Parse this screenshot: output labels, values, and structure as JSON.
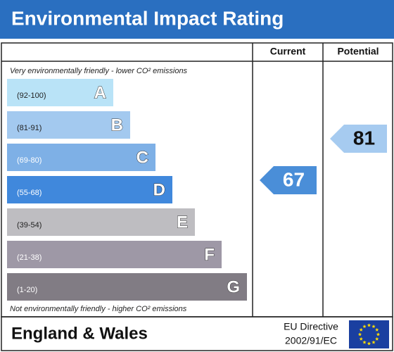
{
  "chart_data": {
    "type": "rating",
    "title": "Environmental Impact Rating",
    "top_note": "Very environmentally friendly - lower CO² emissions",
    "bottom_note": "Not environmentally friendly - higher CO² emissions",
    "bands": [
      {
        "range": "(92-100)",
        "letter": "A",
        "color": "#b9e3f7",
        "text_color": "#222"
      },
      {
        "range": "(81-91)",
        "letter": "B",
        "color": "#a3c9ef",
        "text_color": "#222"
      },
      {
        "range": "(69-80)",
        "letter": "C",
        "color": "#7eb0e6",
        "text_color": "#fff"
      },
      {
        "range": "(55-68)",
        "letter": "D",
        "color": "#4088dc",
        "text_color": "#fff"
      },
      {
        "range": "(39-54)",
        "letter": "E",
        "color": "#bebdc1",
        "text_color": "#222"
      },
      {
        "range": "(21-38)",
        "letter": "F",
        "color": "#9e98a6",
        "text_color": "#fff"
      },
      {
        "range": "(1-20)",
        "letter": "G",
        "color": "#817c84",
        "text_color": "#fff"
      }
    ],
    "series": [
      {
        "name": "Current",
        "value": 67,
        "color": "#4a8ed8"
      },
      {
        "name": "Potential",
        "value": 81,
        "color": "#a6cbf0"
      }
    ],
    "footer": {
      "region": "England & Wales",
      "directive_line1": "EU Directive",
      "directive_line2": "2002/91/EC"
    }
  }
}
